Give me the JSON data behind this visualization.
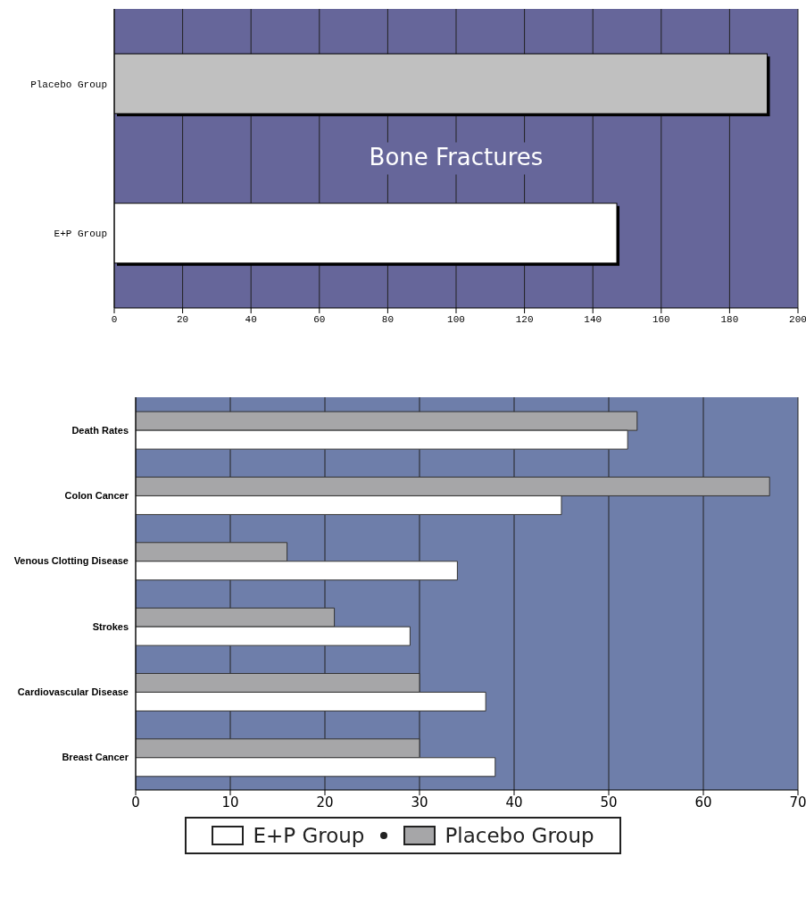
{
  "chart_data": [
    {
      "type": "bar",
      "orientation": "horizontal",
      "title": "Bone Fractures",
      "categories": [
        "Placebo Group",
        "E+P Group"
      ],
      "series": [
        {
          "values": [
            191,
            147
          ],
          "colors": [
            "#c0c0c0",
            "#ffffff"
          ]
        }
      ],
      "xlim": [
        0,
        200
      ],
      "xticks": [
        0,
        20,
        40,
        60,
        80,
        100,
        120,
        140,
        160,
        180,
        200
      ],
      "grid": "x",
      "legend": false
    },
    {
      "type": "bar",
      "orientation": "horizontal",
      "categories": [
        "Death Rates",
        "Colon Cancer",
        "Venous Clotting Disease",
        "Strokes",
        "Cardiovascular Disease",
        "Breast Cancer"
      ],
      "series": [
        {
          "name": "E+P Group",
          "color": "#ffffff",
          "values": [
            52,
            45,
            34,
            29,
            37,
            38
          ]
        },
        {
          "name": "Placebo Group",
          "color": "#a6a6a8",
          "values": [
            53,
            67,
            16,
            21,
            30,
            30
          ]
        }
      ],
      "xlim": [
        0,
        70
      ],
      "xticks": [
        0,
        10,
        20,
        30,
        40,
        50,
        60,
        70
      ],
      "grid": "x",
      "legend": "bottom"
    }
  ]
}
